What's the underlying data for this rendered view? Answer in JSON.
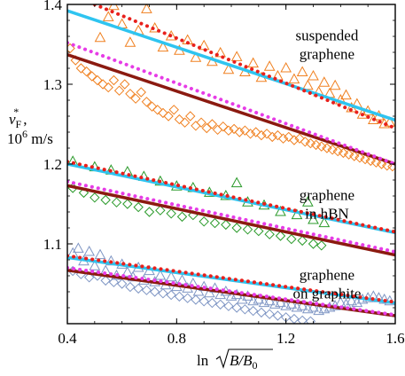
{
  "chart_data": {
    "type": "scatter",
    "xlabel_text": "ln",
    "xlabel_expr": "B/B",
    "xlabel_sub": "0",
    "ylabel_main": "v",
    "ylabel_sub": "F",
    "ylabel_sup": "*",
    "ylabel_comma": ",",
    "ylabel_units": "10",
    "ylabel_units_sup": "6",
    "ylabel_units_rest": " m/s",
    "xlim": [
      0.4,
      1.6
    ],
    "ylim": [
      1.0,
      1.4
    ],
    "x_ticks": [
      0.4,
      0.8,
      1.2,
      1.6
    ],
    "x_tick_labels": [
      "0.4",
      "0.8",
      "1.2",
      "1.6"
    ],
    "y_ticks": [
      1.1,
      1.2,
      1.3,
      1.4
    ],
    "y_tick_labels": [
      "1.1",
      "1.2",
      "1.3",
      "1.4"
    ],
    "annotations": [
      {
        "lines": [
          "suspended",
          "graphene"
        ],
        "x": 1.35,
        "y": 1.355
      },
      {
        "lines": [
          "graphene",
          "in hBN"
        ],
        "x": 1.35,
        "y": 1.155
      },
      {
        "lines": [
          "graphene",
          "on graphite"
        ],
        "x": 1.35,
        "y": 1.055
      }
    ],
    "colors": {
      "cyan": "#2ec4f0",
      "darkred": "#8b1a10",
      "red": "#e8201c",
      "magenta": "#e63ce6",
      "orange": "#f08020",
      "green": "#2a9a2a",
      "blue": "#7f96c4"
    },
    "lines": [
      {
        "id": "susp-cyan",
        "style": "solid",
        "color": "cyan",
        "points": [
          [
            0.4,
            1.392
          ],
          [
            1.6,
            1.255
          ]
        ]
      },
      {
        "id": "susp-dark",
        "style": "solid",
        "color": "darkred",
        "points": [
          [
            0.4,
            1.337
          ],
          [
            1.6,
            1.2
          ]
        ]
      },
      {
        "id": "susp-red-dot",
        "style": "dotted",
        "color": "red",
        "points": [
          [
            0.5,
            1.4
          ],
          [
            1.6,
            1.245
          ]
        ]
      },
      {
        "id": "susp-mag-dot",
        "style": "dotted",
        "color": "magenta",
        "points": [
          [
            0.4,
            1.352
          ],
          [
            1.6,
            1.2
          ]
        ]
      },
      {
        "id": "hbn-cyan",
        "style": "solid",
        "color": "cyan",
        "points": [
          [
            0.4,
            1.2
          ],
          [
            1.6,
            1.114
          ]
        ]
      },
      {
        "id": "hbn-dark",
        "style": "solid",
        "color": "darkred",
        "points": [
          [
            0.4,
            1.173
          ],
          [
            1.6,
            1.086
          ]
        ]
      },
      {
        "id": "hbn-red-dot",
        "style": "dotted",
        "color": "red",
        "points": [
          [
            0.4,
            1.203
          ],
          [
            1.6,
            1.115
          ]
        ]
      },
      {
        "id": "hbn-mag-dot",
        "style": "dotted",
        "color": "magenta",
        "points": [
          [
            0.4,
            1.178
          ],
          [
            1.6,
            1.09
          ]
        ]
      },
      {
        "id": "gr-cyan",
        "style": "solid",
        "color": "cyan",
        "points": [
          [
            0.4,
            1.083
          ],
          [
            1.6,
            1.026
          ]
        ]
      },
      {
        "id": "gr-dark",
        "style": "solid",
        "color": "darkred",
        "points": [
          [
            0.4,
            1.067
          ],
          [
            1.6,
            1.01
          ]
        ]
      },
      {
        "id": "gr-red-dot",
        "style": "dotted",
        "color": "red",
        "points": [
          [
            0.4,
            1.085
          ],
          [
            1.6,
            1.027
          ]
        ]
      },
      {
        "id": "gr-mag-dot",
        "style": "dotted",
        "color": "magenta",
        "points": [
          [
            0.4,
            1.07
          ],
          [
            1.6,
            1.011
          ]
        ]
      }
    ],
    "scatter_series": [
      {
        "id": "susp-triangles",
        "marker": "triangle",
        "color": "orange",
        "points": [
          [
            0.52,
            1.358
          ],
          [
            0.55,
            1.384
          ],
          [
            0.57,
            1.398
          ],
          [
            0.6,
            1.375
          ],
          [
            0.63,
            1.352
          ],
          [
            0.66,
            1.367
          ],
          [
            0.69,
            1.394
          ],
          [
            0.72,
            1.37
          ],
          [
            0.75,
            1.346
          ],
          [
            0.78,
            1.36
          ],
          [
            0.81,
            1.342
          ],
          [
            0.84,
            1.355
          ],
          [
            0.87,
            1.333
          ],
          [
            0.9,
            1.348
          ],
          [
            0.93,
            1.328
          ],
          [
            0.96,
            1.339
          ],
          [
            0.99,
            1.318
          ],
          [
            1.02,
            1.334
          ],
          [
            1.05,
            1.315
          ],
          [
            1.08,
            1.326
          ],
          [
            1.11,
            1.308
          ],
          [
            1.14,
            1.322
          ],
          [
            1.17,
            1.31
          ],
          [
            1.2,
            1.32
          ],
          [
            1.23,
            1.306
          ],
          [
            1.26,
            1.315
          ],
          [
            1.28,
            1.298
          ],
          [
            1.3,
            1.31
          ],
          [
            1.32,
            1.29
          ],
          [
            1.34,
            1.302
          ],
          [
            1.36,
            1.288
          ],
          [
            1.38,
            1.298
          ],
          [
            1.4,
            1.28
          ],
          [
            1.42,
            1.286
          ],
          [
            1.44,
            1.27
          ],
          [
            1.46,
            1.275
          ],
          [
            1.48,
            1.262
          ],
          [
            1.5,
            1.266
          ],
          [
            1.52,
            1.255
          ],
          [
            1.54,
            1.26
          ],
          [
            1.56,
            1.25
          ],
          [
            1.58,
            1.252
          ]
        ]
      },
      {
        "id": "susp-diamonds",
        "marker": "diamond",
        "color": "orange",
        "points": [
          [
            0.41,
            1.345
          ],
          [
            0.43,
            1.33
          ],
          [
            0.45,
            1.32
          ],
          [
            0.47,
            1.316
          ],
          [
            0.49,
            1.31
          ],
          [
            0.51,
            1.305
          ],
          [
            0.53,
            1.3
          ],
          [
            0.55,
            1.296
          ],
          [
            0.57,
            1.305
          ],
          [
            0.59,
            1.292
          ],
          [
            0.61,
            1.3
          ],
          [
            0.63,
            1.288
          ],
          [
            0.65,
            1.282
          ],
          [
            0.67,
            1.29
          ],
          [
            0.69,
            1.278
          ],
          [
            0.71,
            1.272
          ],
          [
            0.73,
            1.268
          ],
          [
            0.75,
            1.264
          ],
          [
            0.77,
            1.26
          ],
          [
            0.79,
            1.268
          ],
          [
            0.81,
            1.256
          ],
          [
            0.83,
            1.252
          ],
          [
            0.85,
            1.26
          ],
          [
            0.87,
            1.248
          ],
          [
            0.89,
            1.252
          ],
          [
            0.91,
            1.245
          ],
          [
            0.93,
            1.25
          ],
          [
            0.95,
            1.243
          ],
          [
            0.97,
            1.247
          ],
          [
            0.99,
            1.242
          ],
          [
            1.01,
            1.244
          ],
          [
            1.03,
            1.24
          ],
          [
            1.05,
            1.242
          ],
          [
            1.07,
            1.238
          ],
          [
            1.09,
            1.24
          ],
          [
            1.11,
            1.236
          ],
          [
            1.13,
            1.238
          ],
          [
            1.15,
            1.234
          ],
          [
            1.17,
            1.236
          ],
          [
            1.19,
            1.232
          ],
          [
            1.21,
            1.234
          ],
          [
            1.23,
            1.23
          ],
          [
            1.25,
            1.232
          ],
          [
            1.27,
            1.228
          ],
          [
            1.29,
            1.226
          ],
          [
            1.31,
            1.224
          ],
          [
            1.33,
            1.222
          ],
          [
            1.35,
            1.22
          ],
          [
            1.37,
            1.218
          ],
          [
            1.39,
            1.216
          ],
          [
            1.41,
            1.214
          ],
          [
            1.43,
            1.212
          ],
          [
            1.45,
            1.21
          ],
          [
            1.47,
            1.208
          ],
          [
            1.49,
            1.206
          ],
          [
            1.51,
            1.204
          ],
          [
            1.53,
            1.202
          ],
          [
            1.55,
            1.2
          ],
          [
            1.57,
            1.198
          ],
          [
            1.59,
            1.197
          ]
        ]
      },
      {
        "id": "hbn-triangles",
        "marker": "triangle",
        "color": "green",
        "points": [
          [
            0.42,
            1.203
          ],
          [
            0.5,
            1.196
          ],
          [
            0.56,
            1.192
          ],
          [
            0.62,
            1.19
          ],
          [
            0.68,
            1.184
          ],
          [
            0.74,
            1.178
          ],
          [
            0.8,
            1.172
          ],
          [
            0.86,
            1.17
          ],
          [
            0.92,
            1.164
          ],
          [
            0.98,
            1.16
          ],
          [
            1.02,
            1.176
          ],
          [
            1.06,
            1.152
          ],
          [
            1.12,
            1.148
          ],
          [
            1.18,
            1.14
          ],
          [
            1.24,
            1.136
          ],
          [
            1.28,
            1.152
          ],
          [
            1.3,
            1.13
          ],
          [
            1.34,
            1.126
          ]
        ]
      },
      {
        "id": "hbn-diamonds",
        "marker": "diamond",
        "color": "green",
        "points": [
          [
            0.42,
            1.17
          ],
          [
            0.46,
            1.164
          ],
          [
            0.5,
            1.158
          ],
          [
            0.54,
            1.155
          ],
          [
            0.58,
            1.152
          ],
          [
            0.62,
            1.15
          ],
          [
            0.66,
            1.146
          ],
          [
            0.7,
            1.14
          ],
          [
            0.74,
            1.142
          ],
          [
            0.78,
            1.138
          ],
          [
            0.82,
            1.134
          ],
          [
            0.86,
            1.136
          ],
          [
            0.9,
            1.128
          ],
          [
            0.94,
            1.126
          ],
          [
            0.98,
            1.124
          ],
          [
            1.02,
            1.12
          ],
          [
            1.06,
            1.118
          ],
          [
            1.1,
            1.116
          ],
          [
            1.14,
            1.112
          ],
          [
            1.18,
            1.11
          ],
          [
            1.22,
            1.106
          ],
          [
            1.26,
            1.104
          ],
          [
            1.3,
            1.1
          ],
          [
            1.33,
            1.098
          ]
        ]
      },
      {
        "id": "gr-triangles",
        "marker": "triangle",
        "color": "blue",
        "points": [
          [
            0.42,
            1.088
          ],
          [
            0.44,
            1.094
          ],
          [
            0.46,
            1.078
          ],
          [
            0.48,
            1.09
          ],
          [
            0.5,
            1.072
          ],
          [
            0.52,
            1.086
          ],
          [
            0.54,
            1.066
          ],
          [
            0.56,
            1.078
          ],
          [
            0.58,
            1.06
          ],
          [
            0.6,
            1.074
          ],
          [
            0.62,
            1.064
          ],
          [
            0.64,
            1.058
          ],
          [
            0.66,
            1.07
          ],
          [
            0.68,
            1.054
          ],
          [
            0.7,
            1.066
          ],
          [
            0.72,
            1.052
          ],
          [
            0.74,
            1.06
          ],
          [
            0.76,
            1.048
          ],
          [
            0.78,
            1.058
          ],
          [
            0.8,
            1.046
          ],
          [
            0.82,
            1.054
          ],
          [
            0.84,
            1.044
          ],
          [
            0.86,
            1.05
          ],
          [
            0.88,
            1.04
          ],
          [
            0.9,
            1.046
          ],
          [
            0.92,
            1.038
          ],
          [
            0.94,
            1.044
          ],
          [
            0.96,
            1.036
          ],
          [
            0.98,
            1.04
          ],
          [
            1.0,
            1.034
          ],
          [
            1.02,
            1.036
          ],
          [
            1.04,
            1.03
          ],
          [
            1.06,
            1.034
          ],
          [
            1.08,
            1.028
          ],
          [
            1.1,
            1.03
          ],
          [
            1.12,
            1.026
          ],
          [
            1.14,
            1.028
          ],
          [
            1.16,
            1.024
          ],
          [
            1.18,
            1.026
          ],
          [
            1.2,
            1.022
          ],
          [
            1.22,
            1.024
          ],
          [
            1.24,
            1.02
          ],
          [
            1.26,
            1.022
          ],
          [
            1.28,
            1.018
          ],
          [
            1.3,
            1.02
          ],
          [
            1.32,
            1.016
          ],
          [
            1.34,
            1.018
          ],
          [
            1.36,
            1.02
          ],
          [
            1.38,
            1.022
          ],
          [
            1.4,
            1.026
          ],
          [
            1.42,
            1.024
          ],
          [
            1.44,
            1.028
          ],
          [
            1.46,
            1.026
          ],
          [
            1.48,
            1.03
          ],
          [
            1.5,
            1.032
          ],
          [
            1.52,
            1.034
          ],
          [
            1.54,
            1.032
          ],
          [
            1.56,
            1.03
          ],
          [
            1.58,
            1.028
          ]
        ]
      },
      {
        "id": "gr-diamonds",
        "marker": "diamond",
        "color": "blue",
        "points": [
          [
            0.42,
            1.066
          ],
          [
            0.45,
            1.062
          ],
          [
            0.48,
            1.058
          ],
          [
            0.51,
            1.06
          ],
          [
            0.54,
            1.054
          ],
          [
            0.57,
            1.052
          ],
          [
            0.6,
            1.05
          ],
          [
            0.63,
            1.046
          ],
          [
            0.66,
            1.044
          ],
          [
            0.69,
            1.042
          ],
          [
            0.72,
            1.04
          ],
          [
            0.75,
            1.038
          ],
          [
            0.78,
            1.036
          ],
          [
            0.81,
            1.034
          ],
          [
            0.84,
            1.032
          ],
          [
            0.87,
            1.03
          ],
          [
            0.9,
            1.028
          ],
          [
            0.93,
            1.026
          ],
          [
            0.96,
            1.024
          ],
          [
            0.99,
            1.022
          ],
          [
            1.02,
            1.02
          ],
          [
            1.05,
            1.018
          ],
          [
            1.08,
            1.016
          ],
          [
            1.11,
            1.014
          ],
          [
            1.14,
            1.012
          ],
          [
            1.17,
            1.01
          ],
          [
            1.2,
            1.008
          ],
          [
            1.23,
            1.006
          ],
          [
            1.26,
            1.004
          ],
          [
            1.29,
            1.003
          ]
        ]
      }
    ]
  }
}
